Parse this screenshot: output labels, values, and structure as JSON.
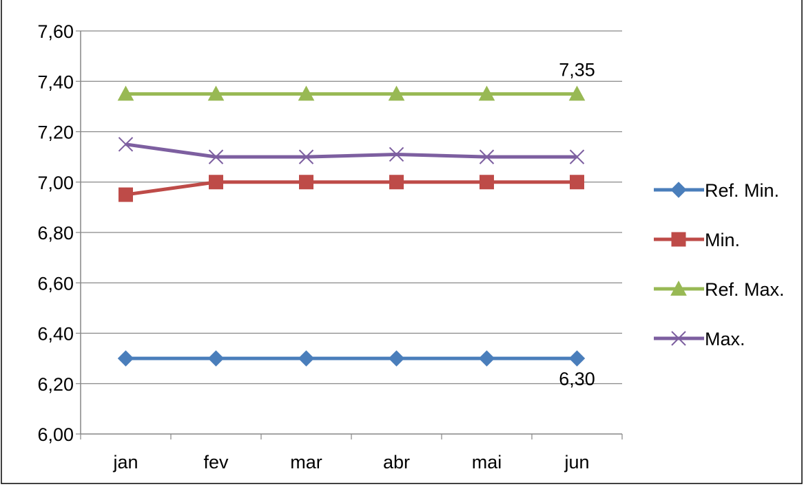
{
  "chart_data": {
    "type": "line",
    "title": "",
    "xlabel": "",
    "ylabel": "",
    "categories": [
      "jan",
      "fev",
      "mar",
      "abr",
      "mai",
      "jun"
    ],
    "ylim": [
      6.0,
      7.6
    ],
    "yticks": [
      "6,00",
      "6,20",
      "6,40",
      "6,60",
      "6,80",
      "7,00",
      "7,20",
      "7,40",
      "7,60"
    ],
    "grid": "horizontal",
    "legend_position": "right",
    "series": [
      {
        "name": "Ref. Min.",
        "values": [
          6.3,
          6.3,
          6.3,
          6.3,
          6.3,
          6.3
        ],
        "color": "#4A7EBB",
        "marker": "diamond"
      },
      {
        "name": "Min.",
        "values": [
          6.95,
          7.0,
          7.0,
          7.0,
          7.0,
          7.0
        ],
        "color": "#BE4B48",
        "marker": "square"
      },
      {
        "name": "Ref. Max.",
        "values": [
          7.35,
          7.35,
          7.35,
          7.35,
          7.35,
          7.35
        ],
        "color": "#98B954",
        "marker": "triangle"
      },
      {
        "name": "Max.",
        "values": [
          7.15,
          7.1,
          7.1,
          7.11,
          7.1,
          7.1
        ],
        "color": "#7D5FA0",
        "marker": "x"
      }
    ],
    "annotations": [
      {
        "text": "7,35",
        "series": "Ref. Max.",
        "category": "jun",
        "placement": "above"
      },
      {
        "text": "6,30",
        "series": "Ref. Min.",
        "category": "jun",
        "placement": "below"
      }
    ]
  }
}
